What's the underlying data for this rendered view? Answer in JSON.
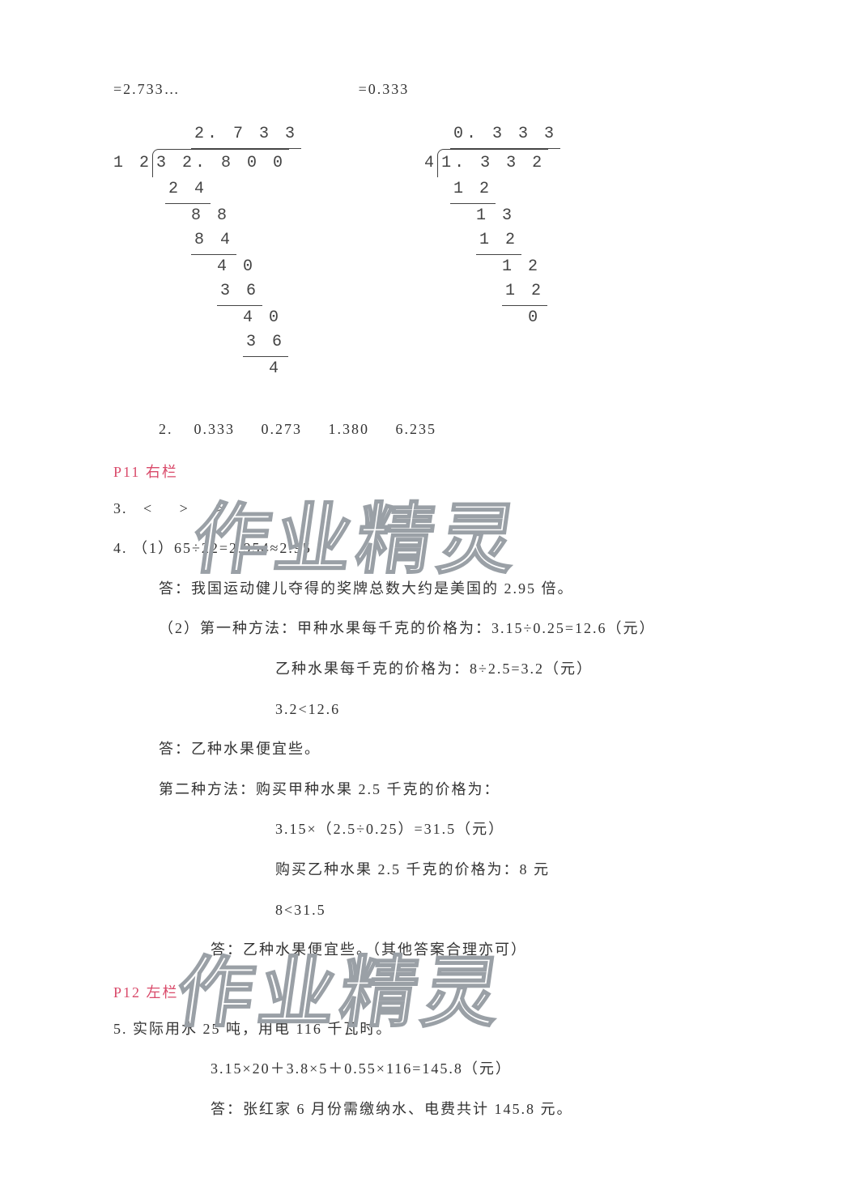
{
  "colors": {
    "text": "#333333",
    "section_header": "#d94a6a",
    "watermark_stroke": "#9aa0a6",
    "background": "#ffffff",
    "division_line": "#444444"
  },
  "fonts": {
    "body": "SimSun",
    "mono": "Courier New",
    "watermark": "SimHei",
    "body_size_pt": 14,
    "mono_size_pt": 15,
    "watermark_size_pt": 72
  },
  "top_results": {
    "left": "=2.733…",
    "right": "=0.333"
  },
  "long_division": {
    "left": {
      "quotient": "2. 7 3 3",
      "divisor": "1 2",
      "dividend": "3 2. 8 0 0",
      "steps": [
        "2 4",
        "8 8",
        "8 4",
        "4 0",
        "3 6",
        "4 0",
        "3 6",
        "4"
      ],
      "indents": [
        0,
        1,
        1,
        2,
        2,
        3,
        3,
        4
      ]
    },
    "right": {
      "quotient": "0. 3 3 3",
      "divisor": "4",
      "dividend": "1. 3 3 2",
      "steps": [
        "1 2",
        "1 3",
        "1 2",
        "1 2",
        "1 2",
        "0"
      ],
      "indents": [
        0,
        1,
        1,
        2,
        2,
        3
      ]
    }
  },
  "item2": {
    "label": "2.",
    "values": [
      "0.333",
      "0.273",
      "1.380",
      "6.235"
    ]
  },
  "section_p11": "P11 右栏",
  "item3": {
    "label": "3.",
    "symbols": [
      "<",
      ">",
      ">"
    ]
  },
  "item4": {
    "label": "4.",
    "part1_expr": "（1）65÷22=2.954≈2.95",
    "part1_ans": "答：我国运动健儿夺得的奖牌总数大约是美国的 2.95 倍。",
    "part2_m1_a": "（2）第一种方法：甲种水果每千克的价格为：3.15÷0.25=12.6（元）",
    "part2_m1_b": "乙种水果每千克的价格为：8÷2.5=3.2（元）",
    "part2_m1_c": "3.2<12.6",
    "part2_m1_ans": "答：乙种水果便宜些。",
    "part2_m2_a": "第二种方法：购买甲种水果 2.5 千克的价格为：",
    "part2_m2_b": "3.15×（2.5÷0.25）=31.5（元）",
    "part2_m2_c": "购买乙种水果 2.5 千克的价格为：8 元",
    "part2_m2_d": "8<31.5",
    "part2_m2_ans": "答：乙种水果便宜些。（其他答案合理亦可）"
  },
  "section_p12": "P12 左栏",
  "item5": {
    "label": "5.",
    "line1": "实际用水 25 吨，用电 116 千瓦时。",
    "line2": "3.15×20＋3.8×5＋0.55×116=145.8（元）",
    "line3": "答：张红家 6 月份需缴纳水、电费共计 145.8 元。"
  },
  "watermark_text": "作业精灵"
}
